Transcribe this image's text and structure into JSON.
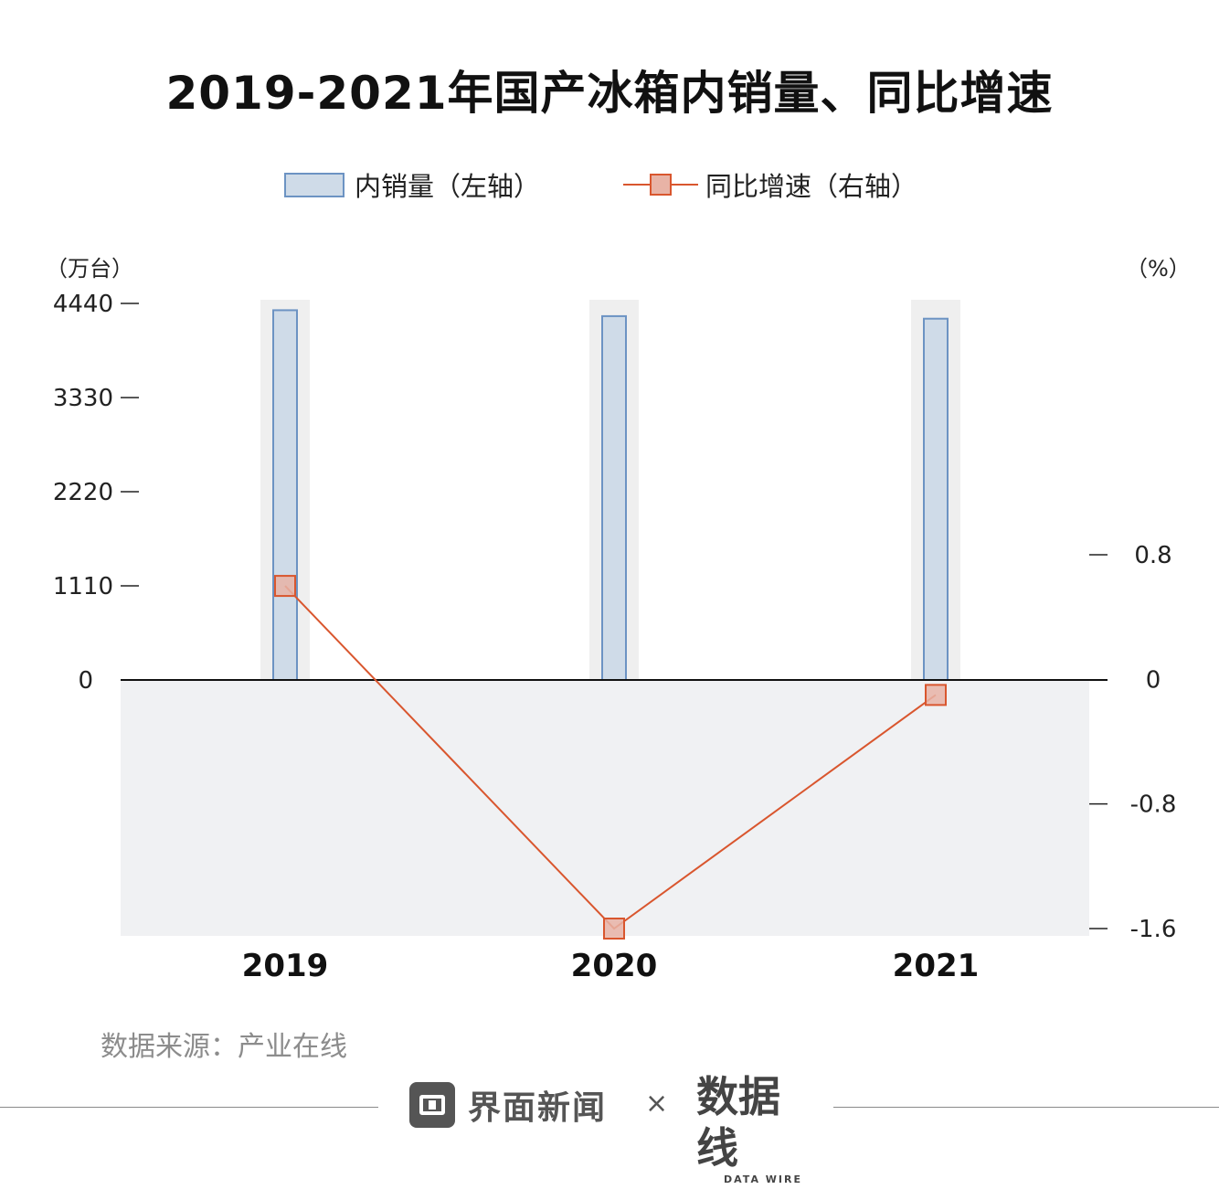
{
  "title": "2019-2021年国产冰箱内销量、同比增速",
  "legend": {
    "bar_label": "内销量（左轴）",
    "line_label": "同比增速（右轴）"
  },
  "axes": {
    "left_unit": "（万台）",
    "right_unit": "（%）"
  },
  "colors": {
    "bar_fill": "#cfdbe8",
    "bar_stroke": "#6c93c3",
    "line": "#d9562e",
    "marker_fill": "#e8b3a6",
    "neg_band": "#f0f1f3"
  },
  "chart_data": {
    "type": "bar",
    "categories": [
      "2019",
      "2020",
      "2021"
    ],
    "series": [
      {
        "name": "内销量（左轴）",
        "axis": "left",
        "type": "bar",
        "values": [
          4360,
          4290,
          4260
        ]
      },
      {
        "name": "同比增速（右轴）",
        "axis": "right",
        "type": "line",
        "values": [
          0.6,
          -1.6,
          -0.1
        ]
      }
    ],
    "left_ticks": [
      "0",
      "1110",
      "2220",
      "3330",
      "4440"
    ],
    "left_tick_values": [
      0,
      1110,
      2220,
      3330,
      4440
    ],
    "right_ticks": [
      "0.8",
      "0",
      "-0.8",
      "-1.6"
    ],
    "right_tick_values": [
      0.8,
      0,
      -0.8,
      -1.6
    ],
    "ylim_left": [
      0,
      4440
    ],
    "ylim_right": [
      -1.6,
      0.8
    ]
  },
  "source": "数据来源：产业在线",
  "footer": {
    "brand": "界面新闻",
    "times": "×",
    "partner": "数据线",
    "partner_sub": "DATA WIRE"
  }
}
